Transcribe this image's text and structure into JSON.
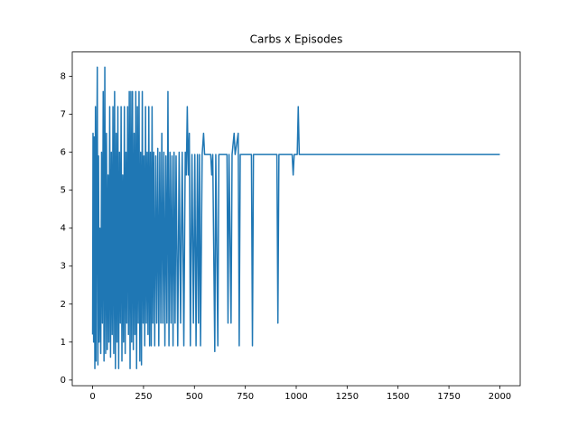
{
  "chart_data": {
    "type": "line",
    "title": "Carbs x Episodes",
    "x": [
      0,
      2,
      5,
      8,
      11,
      14,
      17,
      20,
      23,
      26,
      29,
      32,
      36,
      40,
      44,
      48,
      52,
      56,
      60,
      64,
      68,
      72,
      76,
      80,
      84,
      88,
      92,
      96,
      100,
      104,
      108,
      112,
      116,
      120,
      124,
      128,
      132,
      136,
      140,
      144,
      148,
      152,
      156,
      160,
      164,
      168,
      172,
      176,
      180,
      184,
      188,
      192,
      196,
      200,
      204,
      208,
      212,
      216,
      220,
      224,
      228,
      232,
      236,
      240,
      244,
      248,
      252,
      256,
      260,
      264,
      268,
      272,
      276,
      280,
      284,
      288,
      292,
      296,
      300,
      305,
      310,
      315,
      320,
      325,
      330,
      335,
      340,
      345,
      350,
      355,
      360,
      365,
      370,
      375,
      380,
      385,
      390,
      395,
      400,
      405,
      410,
      418,
      425,
      432,
      440,
      448,
      455,
      460,
      465,
      470,
      475,
      480,
      488,
      495,
      502,
      508,
      515,
      520,
      525,
      530,
      538,
      545,
      550,
      580,
      585,
      590,
      600,
      605,
      615,
      620,
      660,
      665,
      670,
      680,
      685,
      695,
      700,
      715,
      720,
      725,
      780,
      785,
      790,
      905,
      910,
      915,
      980,
      985,
      990,
      1005,
      1010,
      1015,
      2000
    ],
    "values": [
      1.2,
      6.5,
      1.0,
      6.4,
      0.3,
      7.2,
      0.5,
      5.4,
      8.24,
      0.4,
      5.9,
      1.0,
      4.0,
      0.7,
      6.0,
      1.5,
      7.6,
      0.5,
      8.24,
      0.7,
      6.5,
      0.8,
      5.4,
      1.0,
      7.2,
      0.6,
      6.0,
      1.2,
      7.2,
      0.7,
      7.6,
      0.3,
      6.5,
      1.0,
      7.2,
      0.3,
      6.0,
      1.5,
      7.2,
      0.5,
      5.4,
      1.0,
      7.2,
      0.7,
      6.0,
      1.5,
      7.2,
      1.2,
      7.6,
      0.3,
      7.6,
      1.0,
      7.6,
      0.8,
      6.5,
      1.2,
      7.6,
      0.3,
      7.2,
      1.5,
      7.6,
      0.5,
      6.0,
      0.4,
      7.6,
      1.5,
      5.9,
      0.9,
      7.2,
      1.5,
      6.0,
      1.2,
      7.2,
      0.9,
      6.0,
      0.9,
      7.2,
      1.5,
      6.0,
      0.9,
      5.9,
      1.5,
      6.1,
      0.9,
      6.0,
      1.5,
      6.5,
      1.5,
      6.0,
      0.9,
      5.9,
      1.5,
      7.6,
      0.9,
      6.0,
      1.5,
      5.9,
      0.9,
      6.0,
      1.5,
      5.9,
      0.9,
      6.0,
      1.5,
      6.0,
      0.9,
      6.0,
      5.4,
      7.2,
      5.4,
      6.5,
      0.9,
      5.94,
      1.5,
      5.94,
      0.9,
      5.94,
      1.5,
      5.94,
      0.9,
      5.94,
      6.5,
      5.94,
      5.94,
      5.4,
      5.94,
      0.75,
      5.94,
      0.9,
      5.94,
      5.94,
      1.5,
      5.94,
      1.5,
      5.94,
      6.5,
      5.94,
      6.5,
      0.9,
      5.94,
      5.94,
      0.9,
      5.94,
      5.94,
      1.5,
      5.94,
      5.94,
      5.4,
      5.94,
      5.94,
      7.2,
      5.94,
      5.94
    ],
    "color": "#1f77b4",
    "xlim": [
      -100,
      2100
    ],
    "xticks": [
      0,
      250,
      500,
      750,
      1000,
      1250,
      1500,
      1750,
      2000
    ],
    "ylim": [
      -0.15,
      8.64
    ],
    "yticks": [
      0,
      1,
      2,
      3,
      4,
      5,
      6,
      7,
      8
    ]
  }
}
